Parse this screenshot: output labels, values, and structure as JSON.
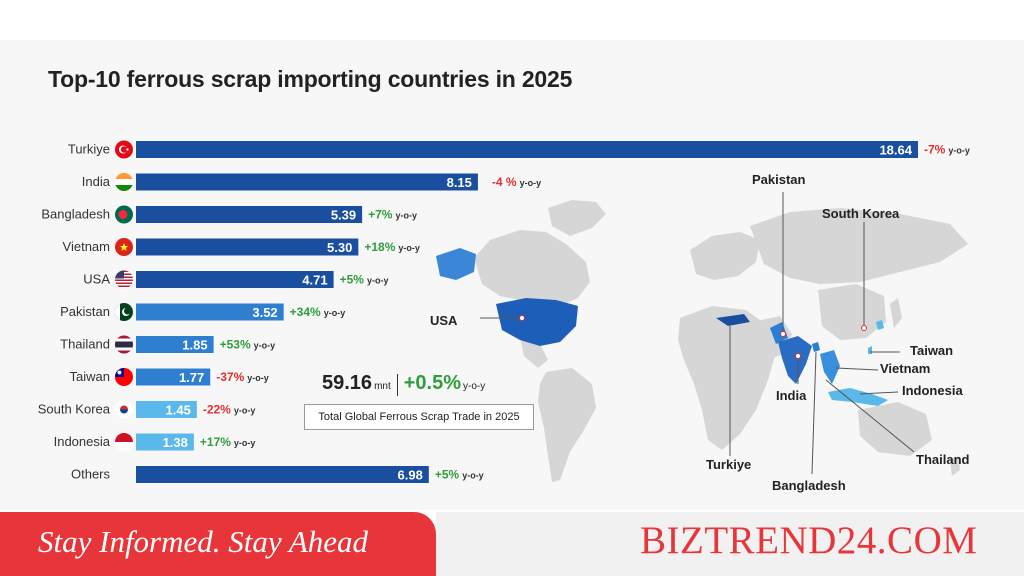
{
  "title": "Top-10 ferrous scrap importing countries in 2025",
  "chart_data": {
    "type": "bar",
    "orientation": "horizontal",
    "title": "Top-10 ferrous scrap importing countries in 2025",
    "categories": [
      "Turkiye",
      "India",
      "Bangladesh",
      "Vietnam",
      "USA",
      "Pakistan",
      "Thailand",
      "Taiwan",
      "South Korea",
      "Indonesia",
      "Others"
    ],
    "values": [
      18.64,
      8.15,
      5.39,
      5.3,
      4.71,
      3.52,
      1.85,
      1.77,
      1.45,
      1.38,
      6.98
    ],
    "value_labels": [
      "18.64",
      "8.15",
      "5.39",
      "5.30",
      "4.71",
      "3.52",
      "1.85",
      "1.77",
      "1.45",
      "1.38",
      "6.98"
    ],
    "changes": [
      "-7%",
      "-4 %",
      "+7%",
      "+18%",
      "+5%",
      "+34%",
      "+53%",
      "-37%",
      "-22%",
      "+17%",
      "+5%"
    ],
    "change_suffix": "y-o-y",
    "grid": false,
    "legend": "none"
  },
  "colors": {
    "dark_bar": "#1a4fa0",
    "mid_bar": "#2f7fd0",
    "light_bar": "#5bb8ea",
    "positive": "#2e9e3a",
    "negative": "#e03030",
    "map_land": "#d6d6d6",
    "map_highlight": "#2a7fd4",
    "accent": "#e8353a"
  },
  "flags": [
    {
      "country": "Turkiye",
      "icon": "turkiye-flag-icon",
      "colors": [
        "#e30a17",
        "#ffffff"
      ]
    },
    {
      "country": "India",
      "icon": "india-flag-icon",
      "colors": [
        "#ff9933",
        "#ffffff",
        "#138808"
      ]
    },
    {
      "country": "Bangladesh",
      "icon": "bangladesh-flag-icon",
      "colors": [
        "#006a4e",
        "#f42a41"
      ]
    },
    {
      "country": "Vietnam",
      "icon": "vietnam-flag-icon",
      "colors": [
        "#da251d",
        "#ffff00"
      ]
    },
    {
      "country": "USA",
      "icon": "usa-flag-icon",
      "colors": [
        "#b22234",
        "#ffffff",
        "#3c3b6e"
      ]
    },
    {
      "country": "Pakistan",
      "icon": "pakistan-flag-icon",
      "colors": [
        "#01411c",
        "#ffffff"
      ]
    },
    {
      "country": "Thailand",
      "icon": "thailand-flag-icon",
      "colors": [
        "#a51931",
        "#ffffff",
        "#2d2a4a"
      ]
    },
    {
      "country": "Taiwan",
      "icon": "taiwan-flag-icon",
      "colors": [
        "#fe0000",
        "#000095",
        "#ffffff"
      ]
    },
    {
      "country": "South Korea",
      "icon": "south-korea-flag-icon",
      "colors": [
        "#ffffff",
        "#cd2e3a",
        "#0047a0"
      ]
    },
    {
      "country": "Indonesia",
      "icon": "indonesia-flag-icon",
      "colors": [
        "#ce1126",
        "#ffffff"
      ]
    }
  ],
  "total": {
    "value": "59.16",
    "unit": "mnt",
    "change": "+0.5%",
    "suffix": "y-o-y",
    "label": "Total Global Ferrous Scrap Trade in 2025"
  },
  "map_labels": [
    "Pakistan",
    "South Korea",
    "USA",
    "Taiwan",
    "Vietnam",
    "Indonesia",
    "India",
    "Turkiye",
    "Thailand",
    "Bangladesh"
  ],
  "footer": {
    "tagline": "Stay Informed. Stay Ahead",
    "site": "BIZTREND24.COM"
  }
}
